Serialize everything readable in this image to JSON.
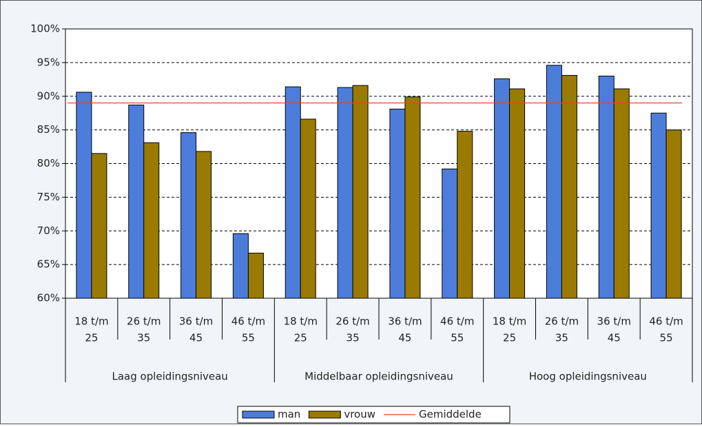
{
  "chart_data": {
    "type": "bar",
    "categories": [
      [
        "18 t/m",
        "25"
      ],
      [
        "26 t/m",
        "35"
      ],
      [
        "36 t/m",
        "45"
      ],
      [
        "46 t/m",
        "55"
      ],
      [
        "18 t/m",
        "25"
      ],
      [
        "26 t/m",
        "35"
      ],
      [
        "36 t/m",
        "45"
      ],
      [
        "46 t/m",
        "55"
      ],
      [
        "18 t/m",
        "25"
      ],
      [
        "26 t/m",
        "35"
      ],
      [
        "36 t/m",
        "45"
      ],
      [
        "46 t/m",
        "55"
      ]
    ],
    "groups": [
      "Laag opleidingsniveau",
      "Middelbaar opleidingsniveau",
      "Hoog opleidingsniveau"
    ],
    "series": [
      {
        "name": "man",
        "color": "#4d7ddb",
        "values": [
          90.6,
          88.7,
          84.6,
          69.6,
          91.4,
          91.3,
          88.1,
          79.2,
          92.6,
          94.6,
          93.0,
          87.5
        ]
      },
      {
        "name": "vrouw",
        "color": "#9a7a00",
        "values": [
          81.5,
          83.1,
          81.8,
          66.7,
          86.6,
          91.6,
          89.9,
          84.8,
          91.1,
          93.1,
          91.1,
          85.0
        ]
      },
      {
        "name": "Gemiddelde",
        "type": "line",
        "color": "#e0482a",
        "values": [
          89,
          89,
          89,
          89,
          89,
          89,
          89,
          89,
          89,
          89,
          89,
          89
        ]
      }
    ],
    "ylim": [
      60,
      100
    ],
    "yticks": [
      {
        "value": 60,
        "label": "60%"
      },
      {
        "value": 65,
        "label": "65%"
      },
      {
        "value": 70,
        "label": "70%"
      },
      {
        "value": 75,
        "label": "75%"
      },
      {
        "value": 80,
        "label": "80%"
      },
      {
        "value": 85,
        "label": "85%"
      },
      {
        "value": 90,
        "label": "90%"
      },
      {
        "value": 95,
        "label": "95%"
      },
      {
        "value": 100,
        "label": "100%"
      }
    ],
    "grid": true
  }
}
